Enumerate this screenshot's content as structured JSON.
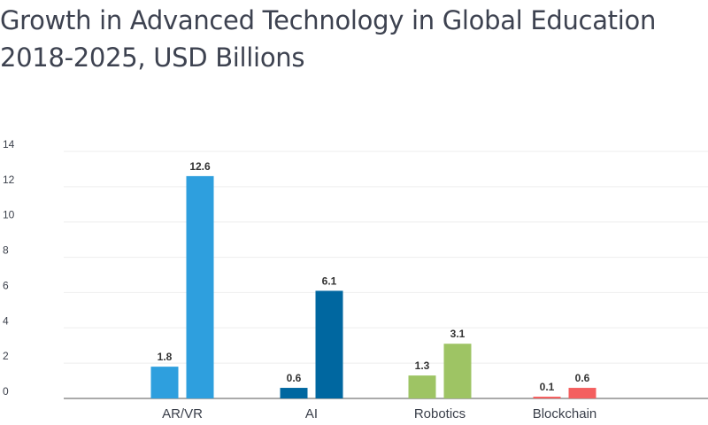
{
  "title_lines": [
    "Growth in Advanced Technology in Global Education",
    "2018-2025, USD Billions"
  ],
  "chart_data": {
    "type": "bar",
    "title": "Growth in Advanced Technology in Global Education 2018-2025, USD Billions",
    "categories": [
      "AR/VR",
      "AI",
      "Robotics",
      "Blockchain"
    ],
    "series": [
      {
        "values": [
          1.8,
          0.6,
          1.3,
          0.1
        ]
      },
      {
        "values": [
          12.6,
          6.1,
          3.1,
          0.6
        ]
      }
    ],
    "data_labels": [
      [
        "1.8",
        "0.6",
        "1.3",
        "0.1"
      ],
      [
        "12.6",
        "6.1",
        "3.1",
        "0.6"
      ]
    ],
    "colors": [
      "#2e9fde",
      "#0067a0",
      "#9ec464",
      "#f45f5f"
    ],
    "colors_light": [
      "#2e9fde",
      "#0067a0",
      "#9ec464",
      "#f45f5f"
    ],
    "ylim": [
      0,
      14
    ],
    "yticks": [
      "0",
      "2",
      "4",
      "6",
      "8",
      "10",
      "12",
      "14"
    ],
    "xlabel": "",
    "ylabel": "",
    "grid": true,
    "legend": "none"
  }
}
